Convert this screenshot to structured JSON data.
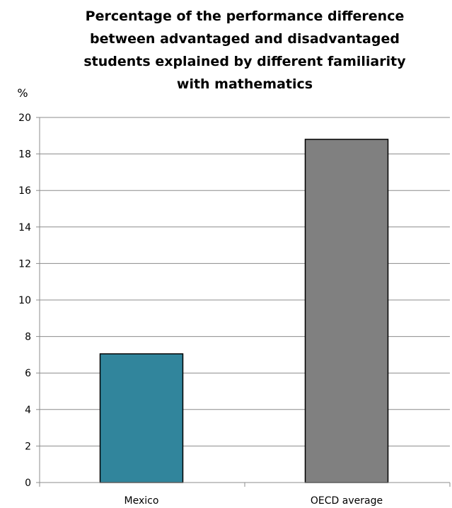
{
  "chart_data": {
    "type": "bar",
    "title_lines": [
      "Percentage of the performance difference",
      "between advantaged and disadvantaged",
      "students explained by different familiarity",
      "with mathematics"
    ],
    "ylabel": "%",
    "xlabel": "",
    "categories": [
      "Mexico",
      "OECD average"
    ],
    "values": [
      7.05,
      18.8
    ],
    "bar_colors": [
      "#31859c",
      "#808080"
    ],
    "ylim": [
      0,
      20
    ],
    "yticks": [
      0,
      2,
      4,
      6,
      8,
      10,
      12,
      14,
      16,
      18,
      20
    ],
    "grid": true,
    "legend": "none"
  }
}
